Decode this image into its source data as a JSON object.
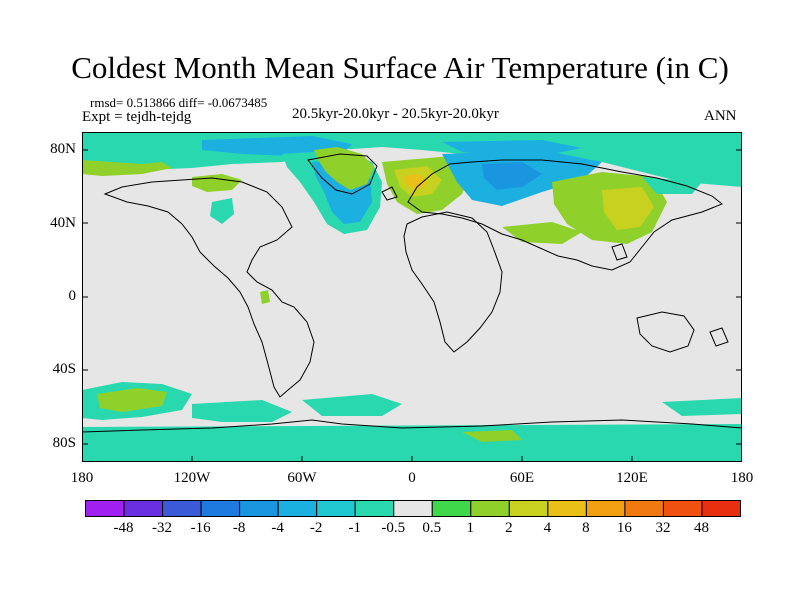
{
  "title": "Coldest Month Mean Surface Air Temperature (in C)",
  "stats": "rmsd= 0.513866 diff= -0.0673485",
  "experiment": "Expt = tejdh-tejdg",
  "period": "20.5kyr-20.0kyr - 20.5kyr-20.0kyr",
  "season": "ANN",
  "map": {
    "projection": "cylindrical-equidistant",
    "lon_range": [
      -180,
      180
    ],
    "lat_range": [
      -90,
      90
    ],
    "ocean_color": "#e6e6e6",
    "y_ticks": [
      {
        "lat": 80,
        "label": "80N"
      },
      {
        "lat": 40,
        "label": "40N"
      },
      {
        "lat": 0,
        "label": "0"
      },
      {
        "lat": -40,
        "label": "40S"
      },
      {
        "lat": -80,
        "label": "80S"
      }
    ],
    "x_ticks": [
      {
        "lon": -180,
        "label": "180"
      },
      {
        "lon": -120,
        "label": "120W"
      },
      {
        "lon": -60,
        "label": "60W"
      },
      {
        "lon": 0,
        "label": "0"
      },
      {
        "lon": 60,
        "label": "60E"
      },
      {
        "lon": 120,
        "label": "120E"
      },
      {
        "lon": 180,
        "label": "180"
      }
    ]
  },
  "colorbar": {
    "colors": [
      "#a020f0",
      "#6a2fe0",
      "#3a5ad8",
      "#1f7ae0",
      "#1a96e0",
      "#1cb0e0",
      "#22c8d0",
      "#2ad8b0",
      "#e6e6e6",
      "#3fd84a",
      "#90d02a",
      "#c8d020",
      "#e8c018",
      "#f0a010",
      "#f07a10",
      "#f05010",
      "#e83010"
    ],
    "labels": [
      "-48",
      "-32",
      "-16",
      "-8",
      "-4",
      "-2",
      "-1",
      "-0.5",
      "0.5",
      "1",
      "2",
      "4",
      "8",
      "16",
      "32",
      "48"
    ]
  }
}
